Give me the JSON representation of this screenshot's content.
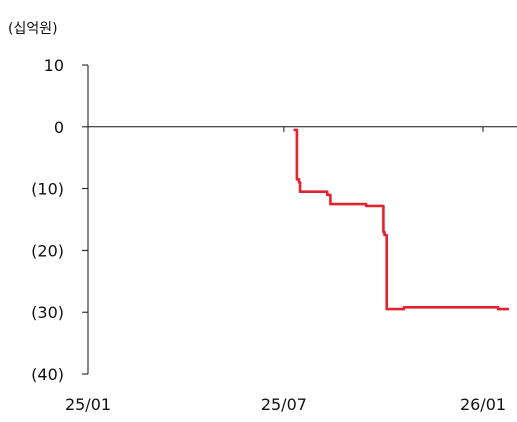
{
  "chart_data": {
    "type": "line",
    "title": "",
    "unit_label": "(십억원)",
    "xlabel": "",
    "ylabel": "",
    "x_ticks": [
      "25/01",
      "25/07",
      "26/01"
    ],
    "x_tick_dates": [
      "2025-01-01",
      "2025-07-01",
      "2026-01-01"
    ],
    "y_ticks": [
      {
        "value": 10,
        "label": "10"
      },
      {
        "value": 0,
        "label": "0"
      },
      {
        "value": -10,
        "label": "(10)"
      },
      {
        "value": -20,
        "label": "(20)"
      },
      {
        "value": -30,
        "label": "(30)"
      },
      {
        "value": -40,
        "label": "(40)"
      }
    ],
    "ylim": [
      -40,
      10
    ],
    "xlim": [
      "2025-01-01",
      "2026-01-25"
    ],
    "grid": false,
    "series": [
      {
        "color": "#e0232e",
        "points": [
          [
            "2025-07-10",
            -0.5
          ],
          [
            "2025-07-13",
            -0.5
          ],
          [
            "2025-07-13",
            -8.5
          ],
          [
            "2025-07-15",
            -8.5
          ],
          [
            "2025-07-15",
            -9.0
          ],
          [
            "2025-07-16",
            -9.0
          ],
          [
            "2025-07-16",
            -10.5
          ],
          [
            "2025-08-10",
            -10.5
          ],
          [
            "2025-08-10",
            -11.0
          ],
          [
            "2025-08-13",
            -11.0
          ],
          [
            "2025-08-13",
            -12.5
          ],
          [
            "2025-09-15",
            -12.5
          ],
          [
            "2025-09-15",
            -12.8
          ],
          [
            "2025-10-01",
            -12.8
          ],
          [
            "2025-10-01",
            -17.0
          ],
          [
            "2025-10-02",
            -17.0
          ],
          [
            "2025-10-02",
            -17.5
          ],
          [
            "2025-10-04",
            -17.5
          ],
          [
            "2025-10-04",
            -29.5
          ],
          [
            "2025-10-20",
            -29.5
          ],
          [
            "2025-10-20",
            -29.2
          ],
          [
            "2026-01-15",
            -29.2
          ],
          [
            "2026-01-15",
            -29.5
          ],
          [
            "2026-01-25",
            -29.5
          ]
        ]
      }
    ]
  }
}
